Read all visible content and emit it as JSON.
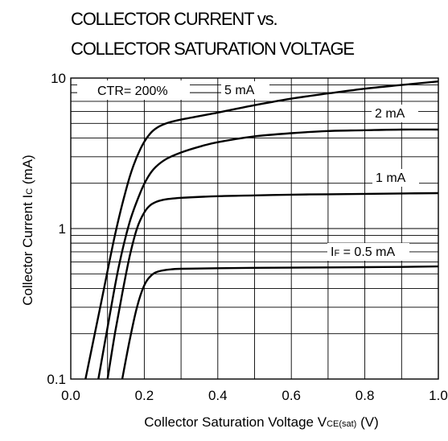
{
  "chart_data": {
    "type": "line",
    "title_lines": [
      "COLLECTOR CURRENT vs.",
      "COLLECTOR SATURATION VOLTAGE"
    ],
    "xlabel": {
      "main": "Collector Saturation Voltage  V",
      "sub": "CE(sat)",
      "unit": " (V)"
    },
    "ylabel": {
      "main": "Collector Current  I",
      "sub": "C",
      "unit": " (mA)"
    },
    "xlim": [
      0,
      1.0
    ],
    "ylim": [
      0.1,
      10
    ],
    "yscale": "log",
    "grid": true,
    "x_ticks": [
      {
        "value": 0.0,
        "label": "0.0"
      },
      {
        "value": 0.2,
        "label": "0.2"
      },
      {
        "value": 0.4,
        "label": "0.4"
      },
      {
        "value": 0.6,
        "label": "0.6"
      },
      {
        "value": 0.8,
        "label": "0.8"
      },
      {
        "value": 1.0,
        "label": "1.0"
      }
    ],
    "y_ticks": [
      {
        "value": 0.1,
        "label": "0.1"
      },
      {
        "value": 1,
        "label": "1"
      },
      {
        "value": 10,
        "label": "10"
      }
    ],
    "annotation": "CTR= 200%",
    "series": [
      {
        "name": "5 mA",
        "label_parts": [
          "",
          "",
          "5 mA"
        ],
        "x": [
          0.04,
          0.08,
          0.12,
          0.15,
          0.17,
          0.19,
          0.21,
          0.23,
          0.26,
          0.3,
          0.4,
          0.5,
          0.6,
          0.7,
          0.8,
          0.9,
          1.0
        ],
        "y": [
          0.1,
          0.3,
          0.9,
          1.8,
          2.6,
          3.4,
          4.1,
          4.6,
          5.0,
          5.3,
          5.9,
          6.6,
          7.3,
          7.9,
          8.5,
          9.0,
          9.5
        ]
      },
      {
        "name": "2 mA",
        "label_parts": [
          "",
          "",
          "2 mA"
        ],
        "x": [
          0.075,
          0.1,
          0.13,
          0.16,
          0.19,
          0.21,
          0.23,
          0.26,
          0.3,
          0.35,
          0.4,
          0.5,
          0.6,
          0.7,
          0.8,
          0.9,
          1.0
        ],
        "y": [
          0.1,
          0.22,
          0.55,
          1.1,
          1.75,
          2.2,
          2.55,
          2.9,
          3.2,
          3.5,
          3.75,
          4.1,
          4.3,
          4.45,
          4.5,
          4.55,
          4.55
        ]
      },
      {
        "name": "1 mA",
        "label_parts": [
          "",
          "",
          "1 mA"
        ],
        "x": [
          0.1,
          0.12,
          0.14,
          0.16,
          0.18,
          0.2,
          0.22,
          0.25,
          0.3,
          0.4,
          0.5,
          0.6,
          0.7,
          0.8,
          0.9,
          1.0
        ],
        "y": [
          0.1,
          0.2,
          0.37,
          0.65,
          1.0,
          1.28,
          1.45,
          1.55,
          1.6,
          1.64,
          1.66,
          1.68,
          1.69,
          1.7,
          1.71,
          1.72
        ]
      },
      {
        "name": "IF = 0.5 mA",
        "label_parts": [
          "I",
          "F",
          " = 0.5 mA"
        ],
        "x": [
          0.14,
          0.16,
          0.18,
          0.2,
          0.22,
          0.24,
          0.27,
          0.3,
          0.4,
          0.5,
          0.6,
          0.7,
          0.8,
          0.9,
          1.0
        ],
        "y": [
          0.1,
          0.18,
          0.3,
          0.42,
          0.49,
          0.52,
          0.535,
          0.54,
          0.545,
          0.548,
          0.55,
          0.552,
          0.554,
          0.556,
          0.56
        ]
      }
    ]
  }
}
